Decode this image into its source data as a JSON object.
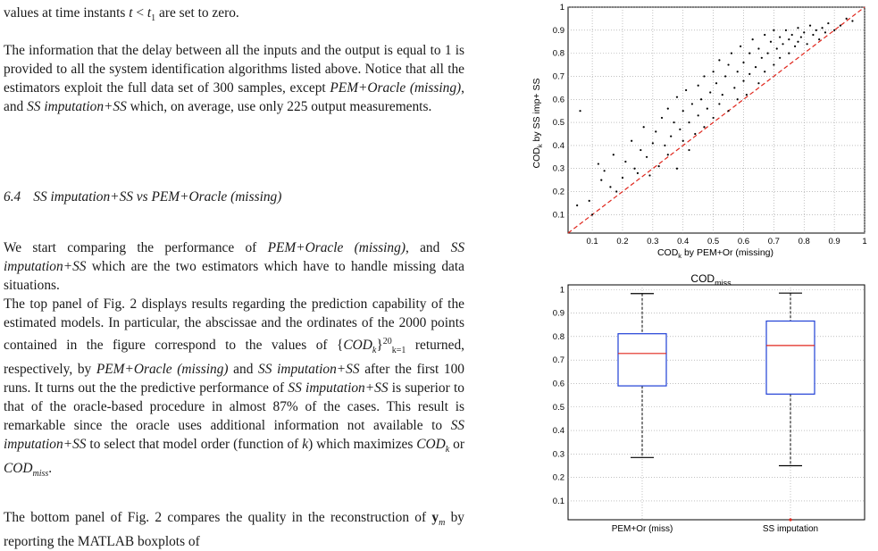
{
  "text": {
    "line_top": "values at time instants t < t1 are set to zero.",
    "para_info": "The information that the delay between all the inputs and the output is equal to 1 is provided to all the system identification algorithms listed above. Notice that all the estimators exploit the full data set of 300 samples, except PEM+Oracle (missing), and SS imputation+SS which, on average, use only 225 output measurements.",
    "section_num": "6.4",
    "section_title": "SS imputation+SS vs PEM+Oracle (missing)",
    "para_start": "We start comparing the performance of PEM+Oracle (missing), and SS imputation+SS which are the two estimators which have to handle missing data situations.",
    "para_top_panel": "The top panel of Fig. 2 displays results regarding the prediction capability of the estimated models. In particular, the abscissae and the ordinates of the 2000 points contained in the figure correspond to the values of {COD_k}_{k=1}^{20} returned, respectively, by PEM+Oracle (missing) and SS imputation+SS after the first 100 runs. It turns out the the predictive performance of SS imputation+SS is superior to that of the oracle-based procedure in almost 87% of the cases. This result is remarkable since the oracle uses additional information not available to SS imputation+SS to select that model order (function of k) which maximizes COD_k or COD_miss.",
    "para_bottom_panel": "The bottom panel of Fig. 2 compares the quality in the reconstruction of y_m by reporting the MATLAB boxplots of"
  },
  "colors": {
    "box": "#1f3fd6",
    "median": "#e0261c",
    "diag": "#e0261c",
    "points": "#000000",
    "grid": "#9a9a9a"
  },
  "chart_data": [
    {
      "type": "scatter",
      "title": "",
      "xlabel": "COD_k by PEM+Or (missing)",
      "ylabel": "COD_k by SS imp+ SS",
      "xlim": [
        0.02,
        1.0
      ],
      "ylim": [
        0.02,
        1.0
      ],
      "xticks": [
        "0.1",
        "0.2",
        "0.3",
        "0.4",
        "0.5",
        "0.6",
        "0.7",
        "0.8",
        "0.9",
        "1"
      ],
      "yticks": [
        "0.1",
        "0.2",
        "0.3",
        "0.4",
        "0.5",
        "0.6",
        "0.7",
        "0.8",
        "0.9",
        "1"
      ],
      "grid": true,
      "reference_line": "y = x (dashed red)",
      "points": [
        [
          0.05,
          0.14
        ],
        [
          0.06,
          0.55
        ],
        [
          0.09,
          0.16
        ],
        [
          0.1,
          0.1
        ],
        [
          0.12,
          0.32
        ],
        [
          0.13,
          0.25
        ],
        [
          0.14,
          0.29
        ],
        [
          0.16,
          0.22
        ],
        [
          0.17,
          0.36
        ],
        [
          0.18,
          0.2
        ],
        [
          0.2,
          0.26
        ],
        [
          0.21,
          0.33
        ],
        [
          0.23,
          0.42
        ],
        [
          0.24,
          0.3
        ],
        [
          0.25,
          0.28
        ],
        [
          0.26,
          0.38
        ],
        [
          0.27,
          0.48
        ],
        [
          0.28,
          0.35
        ],
        [
          0.29,
          0.27
        ],
        [
          0.3,
          0.41
        ],
        [
          0.31,
          0.46
        ],
        [
          0.32,
          0.31
        ],
        [
          0.33,
          0.52
        ],
        [
          0.34,
          0.4
        ],
        [
          0.35,
          0.36
        ],
        [
          0.35,
          0.56
        ],
        [
          0.36,
          0.44
        ],
        [
          0.37,
          0.5
        ],
        [
          0.38,
          0.3
        ],
        [
          0.38,
          0.61
        ],
        [
          0.39,
          0.47
        ],
        [
          0.4,
          0.42
        ],
        [
          0.4,
          0.55
        ],
        [
          0.41,
          0.64
        ],
        [
          0.42,
          0.5
        ],
        [
          0.42,
          0.38
        ],
        [
          0.43,
          0.58
        ],
        [
          0.44,
          0.45
        ],
        [
          0.45,
          0.66
        ],
        [
          0.45,
          0.53
        ],
        [
          0.46,
          0.6
        ],
        [
          0.47,
          0.48
        ],
        [
          0.47,
          0.7
        ],
        [
          0.48,
          0.56
        ],
        [
          0.49,
          0.63
        ],
        [
          0.5,
          0.52
        ],
        [
          0.5,
          0.72
        ],
        [
          0.51,
          0.67
        ],
        [
          0.52,
          0.58
        ],
        [
          0.52,
          0.77
        ],
        [
          0.53,
          0.62
        ],
        [
          0.54,
          0.7
        ],
        [
          0.55,
          0.55
        ],
        [
          0.55,
          0.75
        ],
        [
          0.56,
          0.8
        ],
        [
          0.57,
          0.65
        ],
        [
          0.58,
          0.72
        ],
        [
          0.58,
          0.6
        ],
        [
          0.59,
          0.83
        ],
        [
          0.6,
          0.68
        ],
        [
          0.6,
          0.76
        ],
        [
          0.61,
          0.62
        ],
        [
          0.62,
          0.8
        ],
        [
          0.62,
          0.71
        ],
        [
          0.63,
          0.86
        ],
        [
          0.64,
          0.74
        ],
        [
          0.65,
          0.67
        ],
        [
          0.65,
          0.82
        ],
        [
          0.66,
          0.78
        ],
        [
          0.67,
          0.88
        ],
        [
          0.67,
          0.72
        ],
        [
          0.68,
          0.8
        ],
        [
          0.69,
          0.85
        ],
        [
          0.7,
          0.75
        ],
        [
          0.7,
          0.9
        ],
        [
          0.71,
          0.82
        ],
        [
          0.72,
          0.78
        ],
        [
          0.72,
          0.87
        ],
        [
          0.73,
          0.84
        ],
        [
          0.74,
          0.9
        ],
        [
          0.75,
          0.8
        ],
        [
          0.75,
          0.86
        ],
        [
          0.76,
          0.88
        ],
        [
          0.77,
          0.83
        ],
        [
          0.78,
          0.91
        ],
        [
          0.78,
          0.85
        ],
        [
          0.79,
          0.87
        ],
        [
          0.8,
          0.89
        ],
        [
          0.81,
          0.84
        ],
        [
          0.82,
          0.92
        ],
        [
          0.83,
          0.88
        ],
        [
          0.84,
          0.9
        ],
        [
          0.85,
          0.86
        ],
        [
          0.86,
          0.91
        ],
        [
          0.87,
          0.89
        ],
        [
          0.88,
          0.93
        ],
        [
          0.9,
          0.9
        ],
        [
          0.92,
          0.92
        ],
        [
          0.94,
          0.95
        ],
        [
          0.96,
          0.94
        ]
      ]
    },
    {
      "type": "box",
      "title": "COD_miss",
      "categories": [
        "PEM+Or (miss)",
        "SS imputation"
      ],
      "ylim": [
        0.02,
        1.02
      ],
      "yticks": [
        "0.1",
        "0.2",
        "0.3",
        "0.4",
        "0.5",
        "0.6",
        "0.7",
        "0.8",
        "0.9",
        "1"
      ],
      "grid": true,
      "boxes": [
        {
          "whisker_low": 0.285,
          "q1": 0.59,
          "median": 0.728,
          "q3": 0.812,
          "whisker_high": 0.983,
          "outliers": []
        },
        {
          "whisker_low": 0.25,
          "q1": 0.555,
          "median": 0.762,
          "q3": 0.866,
          "whisker_high": 0.985,
          "outliers": [
            0.02
          ]
        }
      ]
    }
  ]
}
